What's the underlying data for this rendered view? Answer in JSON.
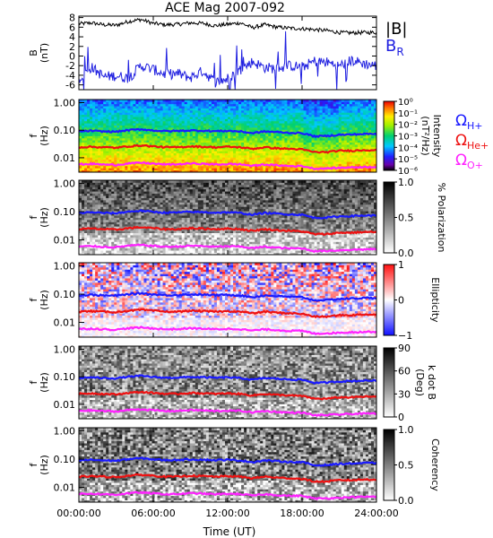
{
  "title": "ACE Mag 2007-092",
  "time_axis": {
    "label": "Time (UT)",
    "ticks": [
      "00:00:00",
      "06:00:00",
      "12:00:00",
      "18:00:00",
      "24:00:00"
    ],
    "range_hours": [
      0,
      24
    ]
  },
  "chart_data": [
    {
      "type": "line",
      "panel": "magnetic-field",
      "ylabel_top": "B",
      "ylabel_bottom": "(nT)",
      "y_ticks": [
        "8",
        "6",
        "4",
        "2",
        "0",
        "-2",
        "-4",
        "-6"
      ],
      "ylim": [
        -7,
        8.3
      ],
      "x": [
        0,
        1,
        2,
        3,
        4,
        5,
        6,
        7,
        8,
        9,
        10,
        11,
        12,
        13,
        14,
        15,
        16,
        17,
        18,
        19,
        20,
        21,
        22,
        23,
        24
      ],
      "series": [
        {
          "name": "|B|",
          "color": "#000000",
          "values": [
            6.7,
            6.9,
            6.5,
            6.4,
            7.2,
            7.6,
            6.8,
            6.5,
            6.6,
            6.9,
            6.8,
            6.3,
            6.6,
            6.9,
            5.9,
            6.5,
            6.0,
            5.8,
            5.7,
            5.5,
            5.3,
            4.9,
            4.8,
            4.9,
            4.9
          ]
        },
        {
          "name": "B",
          "subscript": "R",
          "color": "#2020e0",
          "values": [
            -4.8,
            -2.3,
            -4.3,
            -4.1,
            -4.6,
            -2.0,
            -2.8,
            -3.8,
            -3.7,
            -4.5,
            -3.1,
            -5.5,
            -4.7,
            -2.9,
            -1.2,
            -2.4,
            -2.6,
            -2.0,
            -2.3,
            -1.1,
            -1.3,
            -2.0,
            -0.9,
            -1.6,
            -2.0
          ]
        }
      ]
    },
    {
      "type": "heatmap",
      "panel": "power-spectrum",
      "ylabel_top": "f",
      "ylabel_bottom": "(Hz)",
      "y_ticks": [
        "1.00",
        "0.10",
        "0.01"
      ],
      "colorbar": {
        "label_top": "Intensity",
        "label_bottom": "(nT²/Hz)",
        "ticks": [
          "10⁰",
          "10⁻¹",
          "10⁻²",
          "10⁻³",
          "10⁻⁴",
          "10⁻⁵",
          "10⁻⁶"
        ],
        "palette": "rainbow"
      },
      "legend": [
        {
          "symbol": "Ω",
          "subscript": "H+",
          "color": "#1a1aff"
        },
        {
          "symbol": "Ω",
          "subscript": "He+",
          "color": "#ee1111"
        },
        {
          "symbol": "Ω",
          "subscript": "O+",
          "color": "#ff22ff"
        }
      ]
    },
    {
      "type": "heatmap",
      "panel": "polarization",
      "ylabel_top": "f",
      "ylabel_bottom": "(Hz)",
      "y_ticks": [
        "1.00",
        "0.10",
        "0.01"
      ],
      "colorbar": {
        "label": "% Polarization",
        "ticks": [
          "1.0",
          "0.5",
          "0.0"
        ],
        "palette": "gray"
      }
    },
    {
      "type": "heatmap",
      "panel": "ellipticity",
      "ylabel_top": "f",
      "ylabel_bottom": "(Hz)",
      "y_ticks": [
        "1.00",
        "0.10",
        "0.01"
      ],
      "colorbar": {
        "label": "Ellipticity",
        "ticks": [
          "1",
          "0",
          "−1"
        ],
        "palette": "blue-white-red"
      }
    },
    {
      "type": "heatmap",
      "panel": "wave-normal-angle",
      "ylabel_top": "f",
      "ylabel_bottom": "(Hz)",
      "y_ticks": [
        "1.00",
        "0.10",
        "0.01"
      ],
      "colorbar": {
        "label_top": "k dot B",
        "label_bottom": "(Deg)",
        "ticks": [
          "90",
          "60",
          "30",
          "0"
        ],
        "palette": "gray"
      }
    },
    {
      "type": "heatmap",
      "panel": "coherency",
      "ylabel_top": "f",
      "ylabel_bottom": "(Hz)",
      "y_ticks": [
        "1.00",
        "0.10",
        "0.01"
      ],
      "colorbar": {
        "label": "Coherency",
        "ticks": [
          "1.0",
          "0.5",
          "0.0"
        ],
        "palette": "gray"
      }
    }
  ],
  "gyrofrequencies": {
    "freq_range_hz": [
      0.003,
      1.3
    ],
    "x": [
      0,
      1,
      2,
      3,
      4,
      5,
      6,
      7,
      8,
      9,
      10,
      11,
      12,
      13,
      14,
      15,
      16,
      17,
      18,
      19,
      20,
      21,
      22,
      23,
      24
    ],
    "H+": [
      0.09,
      0.095,
      0.09,
      0.088,
      0.1,
      0.108,
      0.098,
      0.092,
      0.094,
      0.098,
      0.096,
      0.092,
      0.095,
      0.09,
      0.078,
      0.09,
      0.085,
      0.08,
      0.078,
      0.06,
      0.062,
      0.068,
      0.07,
      0.073,
      0.073
    ],
    "He+": [
      0.024,
      0.025,
      0.024,
      0.023,
      0.026,
      0.028,
      0.026,
      0.024,
      0.024,
      0.026,
      0.025,
      0.024,
      0.025,
      0.024,
      0.021,
      0.024,
      0.022,
      0.021,
      0.02,
      0.016,
      0.016,
      0.018,
      0.018,
      0.019,
      0.019
    ],
    "O+": [
      0.0058,
      0.006,
      0.0057,
      0.0055,
      0.0062,
      0.0066,
      0.0061,
      0.0057,
      0.0058,
      0.0062,
      0.006,
      0.0057,
      0.0059,
      0.0058,
      0.0051,
      0.0057,
      0.0053,
      0.005,
      0.005,
      0.004,
      0.0041,
      0.0043,
      0.0045,
      0.0046,
      0.0047
    ]
  },
  "colors": {
    "h_plus": "#1a1aff",
    "he_plus": "#ee1111",
    "o_plus": "#ff22ff",
    "b_total": "#000000",
    "b_r": "#2020e0"
  }
}
